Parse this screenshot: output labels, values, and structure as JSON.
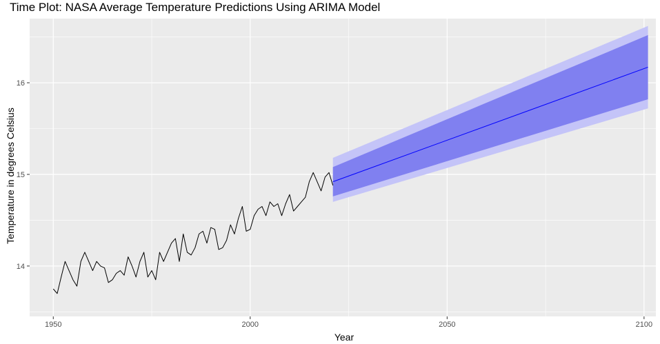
{
  "chart_data": {
    "type": "line",
    "title": "Time Plot: NASA Average Temperature Predictions Using ARIMA Model",
    "xlabel": "Year",
    "ylabel": "Temperature in degrees Celsius",
    "xlim": [
      1944,
      2103
    ],
    "ylim": [
      13.45,
      16.7
    ],
    "x_ticks": [
      1950,
      2000,
      2050,
      2100
    ],
    "x_tick_labels": [
      "1950",
      "2000",
      "2050",
      "2100"
    ],
    "y_ticks": [
      14,
      15,
      16
    ],
    "y_tick_labels": [
      "14",
      "15",
      "16"
    ],
    "grid": true,
    "legend": "none",
    "observed": {
      "x": [
        1950,
        1951,
        1952,
        1953,
        1954,
        1955,
        1956,
        1957,
        1958,
        1959,
        1960,
        1961,
        1962,
        1963,
        1964,
        1965,
        1966,
        1967,
        1968,
        1969,
        1970,
        1971,
        1972,
        1973,
        1974,
        1975,
        1976,
        1977,
        1978,
        1979,
        1980,
        1981,
        1982,
        1983,
        1984,
        1985,
        1986,
        1987,
        1988,
        1989,
        1990,
        1991,
        1992,
        1993,
        1994,
        1995,
        1996,
        1997,
        1998,
        1999,
        2000,
        2001,
        2002,
        2003,
        2004,
        2005,
        2006,
        2007,
        2008,
        2009,
        2010,
        2011,
        2012,
        2013,
        2014,
        2015,
        2016,
        2017,
        2018,
        2019,
        2020,
        2021
      ],
      "y": [
        13.75,
        13.7,
        13.88,
        14.05,
        13.95,
        13.85,
        13.78,
        14.05,
        14.15,
        14.05,
        13.95,
        14.05,
        14.0,
        13.98,
        13.82,
        13.85,
        13.92,
        13.95,
        13.9,
        14.1,
        14.0,
        13.88,
        14.05,
        14.15,
        13.88,
        13.95,
        13.85,
        14.15,
        14.05,
        14.15,
        14.25,
        14.3,
        14.05,
        14.35,
        14.15,
        14.12,
        14.2,
        14.35,
        14.38,
        14.25,
        14.42,
        14.4,
        14.18,
        14.2,
        14.28,
        14.45,
        14.35,
        14.52,
        14.65,
        14.38,
        14.4,
        14.55,
        14.62,
        14.65,
        14.55,
        14.7,
        14.65,
        14.68,
        14.55,
        14.68,
        14.78,
        14.6,
        14.65,
        14.7,
        14.75,
        14.92,
        15.02,
        14.92,
        14.82,
        14.97,
        15.02,
        14.88
      ]
    },
    "forecast": {
      "x": [
        2021,
        2101
      ],
      "mean": [
        14.92,
        16.17
      ],
      "lower80": [
        14.76,
        15.82
      ],
      "upper80": [
        15.08,
        16.52
      ],
      "lower95": [
        14.7,
        15.72
      ],
      "upper95": [
        15.18,
        16.62
      ]
    },
    "colors": {
      "panel": "#ebebeb",
      "grid_major": "#ffffff",
      "observed_line": "#000000",
      "forecast_line": "#0000ff",
      "band80": "#8080f0",
      "band95": "#c4c4f8"
    }
  }
}
